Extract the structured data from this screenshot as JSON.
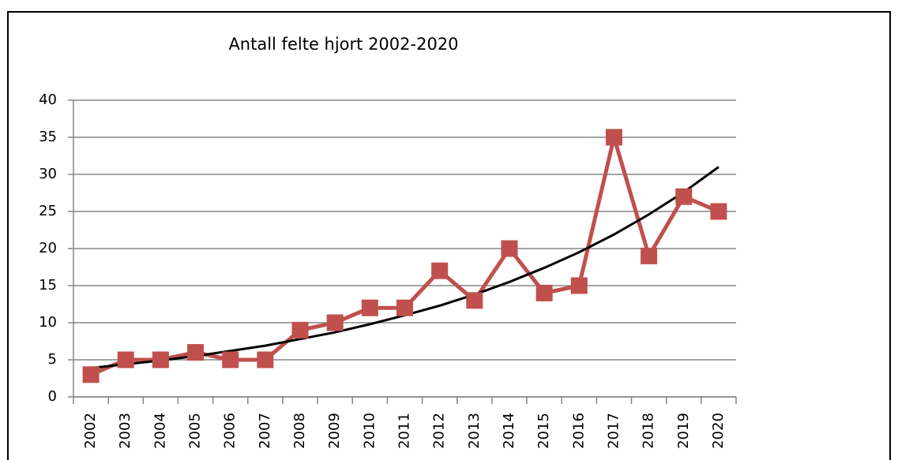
{
  "chart_data": {
    "type": "line",
    "title": "Antall felte hjort 2002-2020",
    "categories": [
      "2002",
      "2003",
      "2004",
      "2005",
      "2006",
      "2007",
      "2008",
      "2009",
      "2010",
      "2011",
      "2012",
      "2013",
      "2014",
      "2015",
      "2016",
      "2017",
      "2018",
      "2019",
      "2020"
    ],
    "values": [
      3,
      5,
      5,
      6,
      5,
      5,
      9,
      10,
      12,
      12,
      17,
      13,
      20,
      14,
      15,
      35,
      19,
      27,
      25
    ],
    "color": "#c0504d",
    "trendline": {
      "color": "#000000",
      "values": [
        3.9,
        4.4,
        4.9,
        5.5,
        6.2,
        6.9,
        7.8,
        8.7,
        9.8,
        11.0,
        12.3,
        13.8,
        15.5,
        17.4,
        19.5,
        21.9,
        24.6,
        27.6,
        31.0
      ]
    },
    "ylim": [
      0,
      40
    ],
    "yticks": [
      0,
      5,
      10,
      15,
      20,
      25,
      30,
      35,
      40
    ],
    "grid": true
  }
}
